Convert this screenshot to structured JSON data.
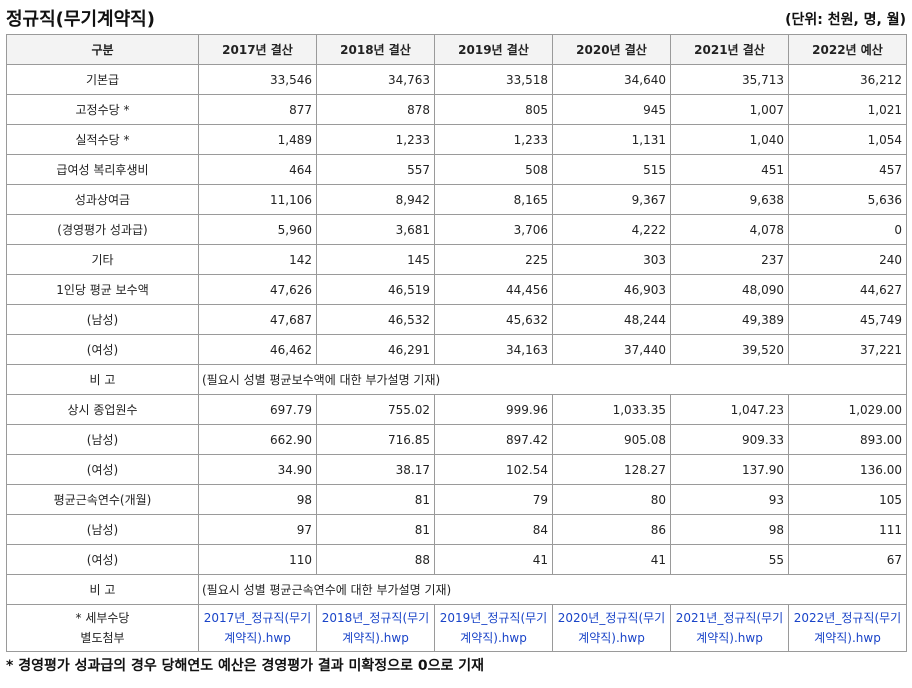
{
  "title": "정규직(무기계약직)",
  "unit": "(단위: 천원, 명, 월)",
  "headers": [
    "구분",
    "2017년 결산",
    "2018년 결산",
    "2019년 결산",
    "2020년 결산",
    "2021년 결산",
    "2022년 예산"
  ],
  "rows": [
    {
      "label": "기본급",
      "values": [
        "33,546",
        "34,763",
        "33,518",
        "34,640",
        "35,713",
        "36,212"
      ]
    },
    {
      "label": "고정수당 *",
      "values": [
        "877",
        "878",
        "805",
        "945",
        "1,007",
        "1,021"
      ]
    },
    {
      "label": "실적수당 *",
      "values": [
        "1,489",
        "1,233",
        "1,233",
        "1,131",
        "1,040",
        "1,054"
      ]
    },
    {
      "label": "급여성 복리후생비",
      "values": [
        "464",
        "557",
        "508",
        "515",
        "451",
        "457"
      ]
    },
    {
      "label": "성과상여금",
      "values": [
        "11,106",
        "8,942",
        "8,165",
        "9,367",
        "9,638",
        "5,636"
      ]
    },
    {
      "label": "(경영평가 성과급)",
      "values": [
        "5,960",
        "3,681",
        "3,706",
        "4,222",
        "4,078",
        "0"
      ]
    },
    {
      "label": "기타",
      "values": [
        "142",
        "145",
        "225",
        "303",
        "237",
        "240"
      ]
    },
    {
      "label": "1인당 평균 보수액",
      "values": [
        "47,626",
        "46,519",
        "44,456",
        "46,903",
        "48,090",
        "44,627"
      ]
    },
    {
      "label": "(남성)",
      "values": [
        "47,687",
        "46,532",
        "45,632",
        "48,244",
        "49,389",
        "45,749"
      ]
    },
    {
      "label": "(여성)",
      "values": [
        "46,462",
        "46,291",
        "34,163",
        "37,440",
        "39,520",
        "37,221"
      ]
    },
    {
      "label": "비 고",
      "note": "(필요시 성별 평균보수액에 대한 부가설명 기재)"
    },
    {
      "label": "상시 종업원수",
      "values": [
        "697.79",
        "755.02",
        "999.96",
        "1,033.35",
        "1,047.23",
        "1,029.00"
      ]
    },
    {
      "label": "(남성)",
      "values": [
        "662.90",
        "716.85",
        "897.42",
        "905.08",
        "909.33",
        "893.00"
      ]
    },
    {
      "label": "(여성)",
      "values": [
        "34.90",
        "38.17",
        "102.54",
        "128.27",
        "137.90",
        "136.00"
      ]
    },
    {
      "label": "평균근속연수(개월)",
      "values": [
        "98",
        "81",
        "79",
        "80",
        "93",
        "105"
      ]
    },
    {
      "label": "(남성)",
      "values": [
        "97",
        "81",
        "84",
        "86",
        "98",
        "111"
      ]
    },
    {
      "label": "(여성)",
      "values": [
        "110",
        "88",
        "41",
        "41",
        "55",
        "67"
      ]
    },
    {
      "label": "비 고",
      "note": "(필요시 성별 평균근속연수에 대한 부가설명 기재)"
    }
  ],
  "attachments": {
    "label": "* 세부수당\n별도첨부",
    "files": [
      "2017년_정규직(무기계약직).hwp",
      "2018년_정규직(무기계약직).hwp",
      "2019년_정규직(무기계약직).hwp",
      "2020년_정규직(무기계약직).hwp",
      "2021년_정규직(무기계약직).hwp",
      "2022년_정규직(무기계약직).hwp"
    ]
  },
  "footnote": "* 경영평가 성과급의 경우 당해연도 예산은 경영평가 결과 미확정으로 0으로 기재"
}
